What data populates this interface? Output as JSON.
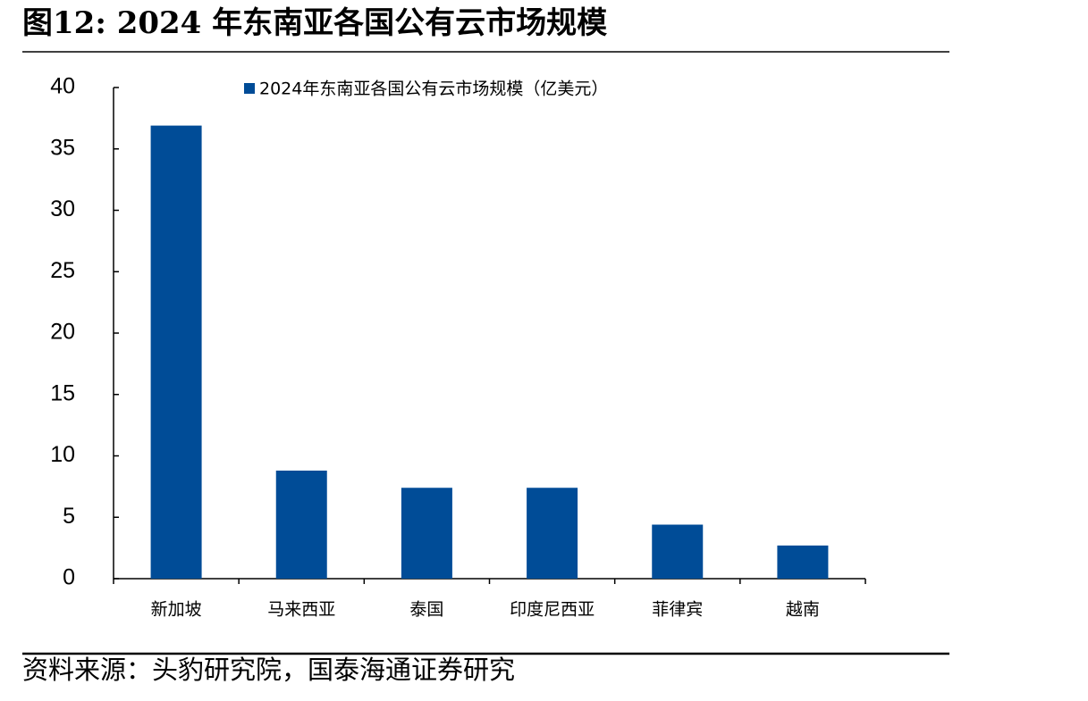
{
  "chart_data": {
    "type": "bar",
    "title": "图12:  2024 年东南亚各国公有云市场规模",
    "categories": [
      "新加坡",
      "马来西亚",
      "泰国",
      "印度尼西亚",
      "菲律宾",
      "越南"
    ],
    "series": [
      {
        "name": "2024年东南亚各国公有云市场规模（亿美元）",
        "color": "#004c97",
        "values": [
          36.9,
          8.8,
          7.4,
          7.4,
          4.4,
          2.7
        ]
      }
    ],
    "ylim": [
      0,
      40
    ],
    "yticks": [
      0,
      5,
      10,
      15,
      20,
      25,
      30,
      35,
      40
    ],
    "grid": false,
    "legend": "top",
    "source": "资料来源：头豹研究院，国泰海通证券研究"
  }
}
